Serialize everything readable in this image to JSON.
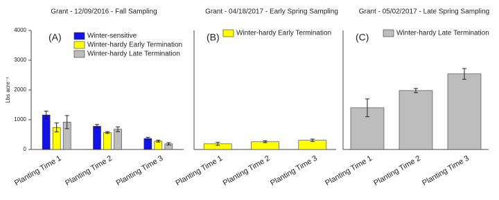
{
  "chart_data": [
    {
      "type": "bar",
      "title": "Grant - 12/09/2016 - Fall Sampling",
      "panel_label": "(A)",
      "y_label": "Lbs acre⁻¹",
      "categories": [
        "Planting Time 1",
        "Planting Time 2",
        "Planting Time 3"
      ],
      "series": [
        {
          "name": "Winter-sensitive",
          "color": "#1212e6",
          "values": [
            1160,
            780,
            370
          ],
          "errors": [
            130,
            60,
            40
          ]
        },
        {
          "name": "Winter-hardy Early Termination",
          "color": "#ffff00",
          "values": [
            740,
            570,
            280
          ],
          "errors": [
            150,
            30,
            30
          ]
        },
        {
          "name": "Winter-hardy Late Termination",
          "color": "#bdbdbd",
          "values": [
            920,
            680,
            190
          ],
          "errors": [
            220,
            80,
            40
          ]
        }
      ],
      "ylim": [
        0,
        4000
      ],
      "yticks": [
        0,
        1000,
        2000,
        3000,
        4000
      ]
    },
    {
      "type": "bar",
      "title": "Grant - 04/18/2017 - Early Spring Sampling",
      "panel_label": "(B)",
      "categories": [
        "Planting Time 1",
        "Planting Time 2",
        "Planting Time 3"
      ],
      "series": [
        {
          "name": "Winter-hardy Early Termination",
          "color": "#ffff00",
          "values": [
            190,
            260,
            310
          ],
          "errors": [
            50,
            30,
            40
          ]
        }
      ],
      "ylim": [
        0,
        4000
      ]
    },
    {
      "type": "bar",
      "title": "Grant - 05/02/2017 - Late Spring Sampling",
      "panel_label": "(C)",
      "categories": [
        "Planting Time 1",
        "Planting Time 2",
        "Planting Time 3"
      ],
      "series": [
        {
          "name": "Winter-hardy Late Termination",
          "color": "#bdbdbd",
          "values": [
            1400,
            1980,
            2540
          ],
          "errors": [
            300,
            70,
            180
          ]
        }
      ],
      "ylim": [
        0,
        4000
      ]
    }
  ]
}
